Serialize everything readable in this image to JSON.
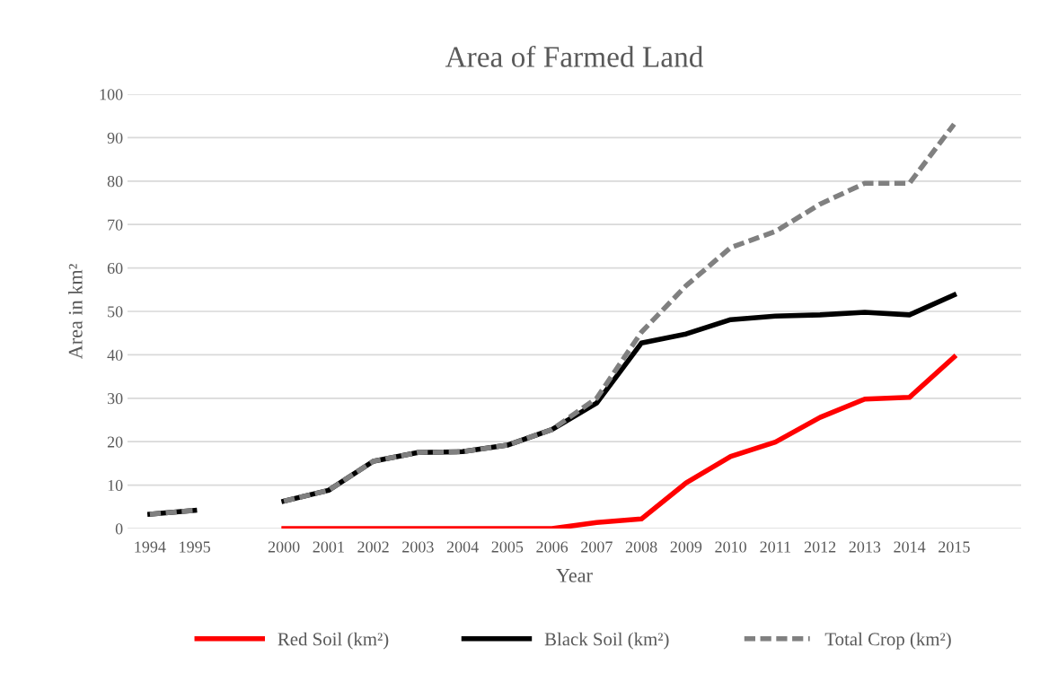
{
  "chart_data": {
    "type": "line",
    "title": "Area of Farmed Land",
    "xlabel": "Year",
    "ylabel": "Area in km²",
    "categories": [
      "1994",
      "1995",
      null,
      "2000",
      "2001",
      "2002",
      "2003",
      "2004",
      "2005",
      "2006",
      "2007",
      "2008",
      "2009",
      "2010",
      "2011",
      "2012",
      "2013",
      "2014",
      "2015",
      null
    ],
    "series": [
      {
        "name": "Red Soil (km²)",
        "color": "#ff0000",
        "line_style": "solid",
        "values": [
          null,
          null,
          null,
          0,
          0,
          0,
          0,
          0,
          0,
          0,
          1.4,
          2.2,
          10.5,
          16.6,
          19.9,
          25.6,
          29.8,
          30.2,
          39.5,
          null
        ]
      },
      {
        "name": "Black Soil (km²)",
        "color": "#000000",
        "line_style": "solid",
        "values": [
          3.3,
          4.2,
          null,
          6.3,
          8.8,
          15.5,
          17.5,
          17.7,
          19.2,
          22.8,
          28.9,
          42.7,
          44.8,
          48.1,
          48.9,
          49.2,
          49.8,
          49.2,
          53.8,
          null
        ]
      },
      {
        "name": "Total Crop (km²)",
        "color": "#808080",
        "line_style": "dashed",
        "values": [
          3.3,
          4.2,
          null,
          6.3,
          8.8,
          15.5,
          17.5,
          17.7,
          19.2,
          22.8,
          30,
          45.2,
          55.9,
          64.7,
          68.4,
          74.7,
          79.5,
          79.5,
          93.1,
          null
        ]
      }
    ],
    "ylim": [
      0,
      100
    ],
    "yticks": [
      0,
      10,
      20,
      30,
      40,
      50,
      60,
      70,
      80,
      90,
      100
    ],
    "grid": "y",
    "legend": "bottom",
    "marker": "none"
  }
}
